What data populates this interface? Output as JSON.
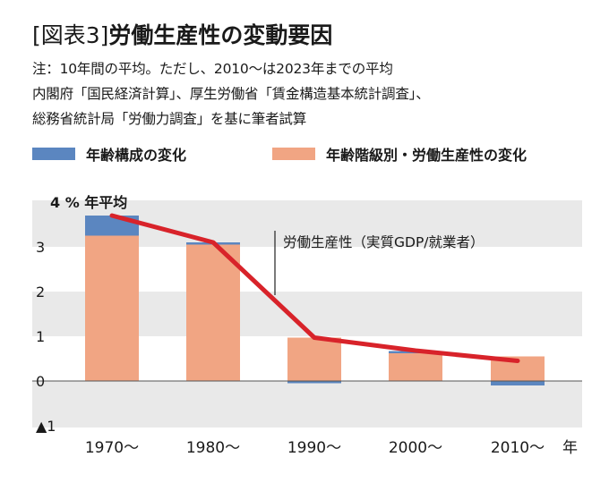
{
  "figure": {
    "title_prefix": "[図表3]",
    "title": "労働生産性の変動要因",
    "notes": [
      "注：10年間の平均。ただし、2010～は2023年までの平均",
      "内閣府「国民経済計算」、厚生労働省「賃金構造基本統計調査」、",
      "総務省統計局「労働力調査」を基に筆者試算"
    ]
  },
  "colors": {
    "age": "#5b86c0",
    "class": "#f1a583",
    "line": "#d8232a",
    "band": "#e9e9e9"
  },
  "chart_data": {
    "type": "bar",
    "stacked": true,
    "title": "",
    "ylabel": "4 % 年平均",
    "xunit": "年",
    "categories": [
      "1970～",
      "1980～",
      "1990～",
      "2000～",
      "2010～"
    ],
    "ylim": [
      -1,
      4
    ],
    "yticks": [
      {
        "value": 4,
        "label": ""
      },
      {
        "value": 3,
        "label": "3"
      },
      {
        "value": 2,
        "label": "2"
      },
      {
        "value": 1,
        "label": "1"
      },
      {
        "value": 0,
        "label": "0"
      },
      {
        "value": -1,
        "label": "▲1"
      }
    ],
    "series": [
      {
        "name": "年齢階級別・労働生産性の変化",
        "kind": "bar",
        "values": [
          3.25,
          3.05,
          0.97,
          0.62,
          0.55
        ]
      },
      {
        "name": "年齢構成の変化",
        "kind": "bar",
        "values": [
          0.45,
          0.05,
          -0.05,
          0.05,
          -0.1
        ]
      },
      {
        "name": "労働生産性（実質GDP/就業者）",
        "kind": "line",
        "values": [
          3.7,
          3.1,
          0.97,
          0.68,
          0.45
        ]
      }
    ],
    "annotation": "労働生産性（実質GDP/就業者）",
    "grid": "alternating horizontal bands",
    "legend_position": "top"
  }
}
